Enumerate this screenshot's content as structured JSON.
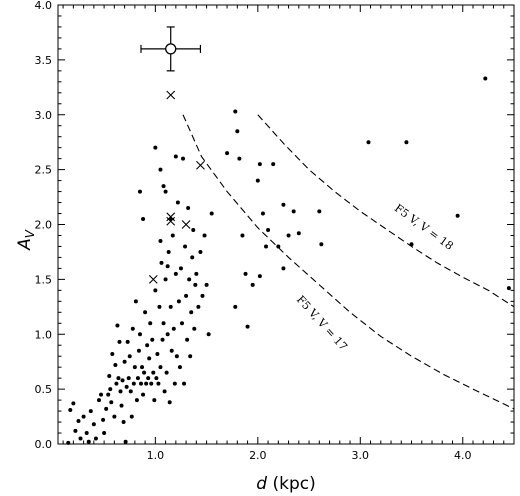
{
  "chart_data": {
    "type": "scatter",
    "xlabel": "d (kpc)",
    "ylabel": "A_V",
    "xlim": [
      0.05,
      4.5
    ],
    "ylim": [
      0.0,
      4.0
    ],
    "x_ticks": [
      "1.0",
      "2.0",
      "3.0",
      "4.0"
    ],
    "y_ticks": [
      "0.0",
      "0.5",
      "1.0",
      "1.5",
      "2.0",
      "2.5",
      "3.0",
      "3.5",
      "4.0"
    ],
    "tick_values_x": [
      1.0,
      2.0,
      3.0,
      4.0
    ],
    "tick_values_y": [
      0.0,
      0.5,
      1.0,
      1.5,
      2.0,
      2.5,
      3.0,
      3.5,
      4.0
    ],
    "series": [
      {
        "marker": "dot",
        "points": [
          [
            0.15,
            0.01
          ],
          [
            0.17,
            0.31
          ],
          [
            0.2,
            0.37
          ],
          [
            0.22,
            0.12
          ],
          [
            0.25,
            0.21
          ],
          [
            0.27,
            0.05
          ],
          [
            0.3,
            0.25
          ],
          [
            0.33,
            0.1
          ],
          [
            0.35,
            0.02
          ],
          [
            0.37,
            0.3
          ],
          [
            0.4,
            0.18
          ],
          [
            0.42,
            0.05
          ],
          [
            0.45,
            0.4
          ],
          [
            0.47,
            0.45
          ],
          [
            0.49,
            0.22
          ],
          [
            0.5,
            0.1
          ],
          [
            0.52,
            0.32
          ],
          [
            0.54,
            0.45
          ],
          [
            0.55,
            0.62
          ],
          [
            0.56,
            0.5
          ],
          [
            0.57,
            0.38
          ],
          [
            0.58,
            0.82
          ],
          [
            0.6,
            0.25
          ],
          [
            0.61,
            0.72
          ],
          [
            0.62,
            0.55
          ],
          [
            0.63,
            1.08
          ],
          [
            0.64,
            0.6
          ],
          [
            0.65,
            0.93
          ],
          [
            0.66,
            0.48
          ],
          [
            0.67,
            0.35
          ],
          [
            0.68,
            0.58
          ],
          [
            0.69,
            0.2
          ],
          [
            0.7,
            0.75
          ],
          [
            0.71,
            0.02
          ],
          [
            0.72,
            0.52
          ],
          [
            0.73,
            0.93
          ],
          [
            0.74,
            0.6
          ],
          [
            0.75,
            0.8
          ],
          [
            0.76,
            0.48
          ],
          [
            0.77,
            0.25
          ],
          [
            0.78,
            1.05
          ],
          [
            0.79,
            0.55
          ],
          [
            0.8,
            0.7
          ],
          [
            0.81,
            1.3
          ],
          [
            0.82,
            0.4
          ],
          [
            0.83,
            0.6
          ],
          [
            0.84,
            0.85
          ],
          [
            0.85,
            1.0
          ],
          [
            0.86,
            0.55
          ],
          [
            0.87,
            0.7
          ],
          [
            0.88,
            0.45
          ],
          [
            0.89,
            0.65
          ],
          [
            0.9,
            1.2
          ],
          [
            0.91,
            0.55
          ],
          [
            0.92,
            0.9
          ],
          [
            0.93,
            0.6
          ],
          [
            0.94,
            0.78
          ],
          [
            0.95,
            1.1
          ],
          [
            0.96,
            0.55
          ],
          [
            0.97,
            0.95
          ],
          [
            0.98,
            0.65
          ],
          [
            0.99,
            0.4
          ],
          [
            1.0,
            1.4
          ],
          [
            1.01,
            0.6
          ],
          [
            1.02,
            0.82
          ],
          [
            1.03,
            0.55
          ],
          [
            1.04,
            1.25
          ],
          [
            1.05,
            0.7
          ],
          [
            1.06,
            1.65
          ],
          [
            1.07,
            0.95
          ],
          [
            1.08,
            1.1
          ],
          [
            1.09,
            0.48
          ],
          [
            1.1,
            1.5
          ],
          [
            1.11,
            0.65
          ],
          [
            1.12,
            1.0
          ],
          [
            1.13,
            1.75
          ],
          [
            1.14,
            0.38
          ],
          [
            1.15,
            1.25
          ],
          [
            1.16,
            0.85
          ],
          [
            1.17,
            1.9
          ],
          [
            1.18,
            1.05
          ],
          [
            1.19,
            0.55
          ],
          [
            1.2,
            1.55
          ],
          [
            1.21,
            0.8
          ],
          [
            1.22,
            2.2
          ],
          [
            1.23,
            1.3
          ],
          [
            1.24,
            0.7
          ],
          [
            1.25,
            1.6
          ],
          [
            1.26,
            1.1
          ],
          [
            1.27,
            2.6
          ],
          [
            1.28,
            0.55
          ],
          [
            1.29,
            1.8
          ],
          [
            1.3,
            1.35
          ],
          [
            1.31,
            0.95
          ],
          [
            1.32,
            2.15
          ],
          [
            1.33,
            1.5
          ],
          [
            1.34,
            0.8
          ],
          [
            1.35,
            1.2
          ],
          [
            1.36,
            1.7
          ],
          [
            1.37,
            1.95
          ],
          [
            1.38,
            1.05
          ],
          [
            1.39,
            1.45
          ],
          [
            1.4,
            1.55
          ],
          [
            1.42,
            1.25
          ],
          [
            1.44,
            1.75
          ],
          [
            1.46,
            1.35
          ],
          [
            1.48,
            1.9
          ],
          [
            1.5,
            1.45
          ],
          [
            1.52,
            1.0
          ],
          [
            1.55,
            2.1
          ],
          [
            0.85,
            2.3
          ],
          [
            0.88,
            2.05
          ],
          [
            1.0,
            2.7
          ],
          [
            1.05,
            2.5
          ],
          [
            1.1,
            2.3
          ],
          [
            1.2,
            2.62
          ],
          [
            1.15,
            2.05
          ],
          [
            1.05,
            1.85
          ],
          [
            1.12,
            1.62
          ],
          [
            1.08,
            2.35
          ],
          [
            1.7,
            2.65
          ],
          [
            1.78,
            3.03
          ],
          [
            1.8,
            2.85
          ],
          [
            1.85,
            1.9
          ],
          [
            1.88,
            1.55
          ],
          [
            1.9,
            1.07
          ],
          [
            1.95,
            1.45
          ],
          [
            2.0,
            2.4
          ],
          [
            2.02,
            2.55
          ],
          [
            2.05,
            2.1
          ],
          [
            2.08,
            1.8
          ],
          [
            2.1,
            1.95
          ],
          [
            2.15,
            2.55
          ],
          [
            2.2,
            1.8
          ],
          [
            2.25,
            1.6
          ],
          [
            2.3,
            1.9
          ],
          [
            2.35,
            2.12
          ],
          [
            2.4,
            1.92
          ],
          [
            1.78,
            1.25
          ],
          [
            2.02,
            1.53
          ],
          [
            2.6,
            2.12
          ],
          [
            2.62,
            1.82
          ],
          [
            3.08,
            2.75
          ],
          [
            3.45,
            2.75
          ],
          [
            3.5,
            1.82
          ],
          [
            3.95,
            2.08
          ],
          [
            4.22,
            3.33
          ],
          [
            4.45,
            1.42
          ],
          [
            1.82,
            2.6
          ],
          [
            2.25,
            2.18
          ]
        ]
      },
      {
        "marker": "cross",
        "points": [
          [
            1.15,
            3.18
          ],
          [
            1.44,
            2.54
          ],
          [
            1.15,
            2.07
          ],
          [
            1.15,
            2.03
          ],
          [
            1.3,
            2.0
          ],
          [
            0.98,
            1.5
          ]
        ]
      },
      {
        "marker": "open-circle-with-errorbars",
        "points": [
          [
            1.15,
            3.6
          ]
        ],
        "xerr": 0.29,
        "yerr": 0.2
      }
    ],
    "curves": [
      {
        "label": "F5 V,  V = 18",
        "style": "dashed",
        "points": [
          [
            2.0,
            3.0
          ],
          [
            2.25,
            2.74
          ],
          [
            2.5,
            2.5
          ],
          [
            2.75,
            2.3
          ],
          [
            3.0,
            2.12
          ],
          [
            3.25,
            1.96
          ],
          [
            3.5,
            1.8
          ],
          [
            3.75,
            1.65
          ],
          [
            4.0,
            1.52
          ],
          [
            4.25,
            1.4
          ],
          [
            4.5,
            1.25
          ]
        ]
      },
      {
        "label": "F5 V,  V = 17",
        "style": "dashed",
        "points": [
          [
            1.27,
            3.0
          ],
          [
            1.45,
            2.62
          ],
          [
            1.7,
            2.3
          ],
          [
            2.0,
            1.97
          ],
          [
            2.3,
            1.7
          ],
          [
            2.6,
            1.45
          ],
          [
            2.9,
            1.2
          ],
          [
            3.2,
            0.98
          ],
          [
            3.5,
            0.8
          ],
          [
            3.8,
            0.64
          ],
          [
            4.1,
            0.5
          ],
          [
            4.5,
            0.32
          ]
        ]
      }
    ]
  }
}
